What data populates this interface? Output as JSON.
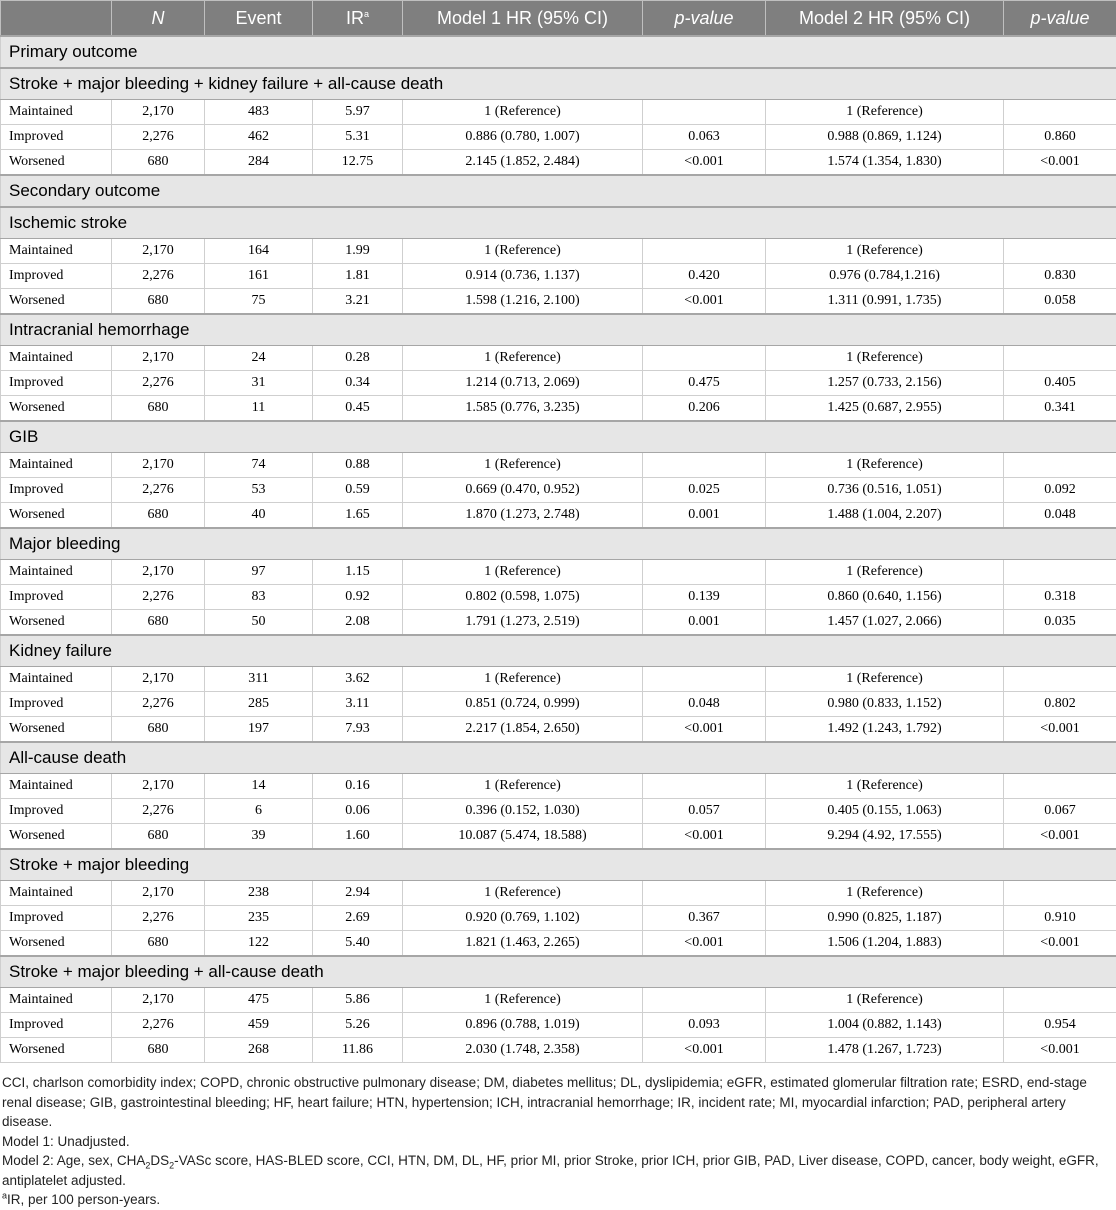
{
  "headers": {
    "n": "N",
    "event": "Event",
    "ir": "IR",
    "ir_sup": "a",
    "m1": "Model 1 HR (95% CI)",
    "p1": "p-value",
    "m2": "Model 2 HR (95% CI)",
    "p2": "p-value"
  },
  "groups": [
    {
      "title": "Primary outcome",
      "outcomes": [
        {
          "title": "Stroke + major bleeding + kidney failure + all-cause death",
          "rows": [
            {
              "label": "Maintained",
              "n": "2,170",
              "event": "483",
              "ir": "5.97",
              "m1": "1 (Reference)",
              "p1": "",
              "m2": "1 (Reference)",
              "p2": ""
            },
            {
              "label": "Improved",
              "n": "2,276",
              "event": "462",
              "ir": "5.31",
              "m1": "0.886 (0.780, 1.007)",
              "p1": "0.063",
              "m2": "0.988 (0.869, 1.124)",
              "p2": "0.860"
            },
            {
              "label": "Worsened",
              "n": "680",
              "event": "284",
              "ir": "12.75",
              "m1": "2.145 (1.852, 2.484)",
              "p1": "<0.001",
              "m2": "1.574 (1.354, 1.830)",
              "p2": "<0.001"
            }
          ]
        }
      ]
    },
    {
      "title": "Secondary outcome",
      "outcomes": [
        {
          "title": "Ischemic stroke",
          "rows": [
            {
              "label": "Maintained",
              "n": "2,170",
              "event": "164",
              "ir": "1.99",
              "m1": "1 (Reference)",
              "p1": "",
              "m2": "1 (Reference)",
              "p2": ""
            },
            {
              "label": "Improved",
              "n": "2,276",
              "event": "161",
              "ir": "1.81",
              "m1": "0.914 (0.736, 1.137)",
              "p1": "0.420",
              "m2": "0.976 (0.784,1.216)",
              "p2": "0.830"
            },
            {
              "label": "Worsened",
              "n": "680",
              "event": "75",
              "ir": "3.21",
              "m1": "1.598 (1.216, 2.100)",
              "p1": "<0.001",
              "m2": "1.311 (0.991, 1.735)",
              "p2": "0.058"
            }
          ]
        },
        {
          "title": "Intracranial hemorrhage",
          "rows": [
            {
              "label": "Maintained",
              "n": "2,170",
              "event": "24",
              "ir": "0.28",
              "m1": "1 (Reference)",
              "p1": "",
              "m2": "1 (Reference)",
              "p2": ""
            },
            {
              "label": "Improved",
              "n": "2,276",
              "event": "31",
              "ir": "0.34",
              "m1": "1.214 (0.713, 2.069)",
              "p1": "0.475",
              "m2": "1.257 (0.733, 2.156)",
              "p2": "0.405"
            },
            {
              "label": "Worsened",
              "n": "680",
              "event": "11",
              "ir": "0.45",
              "m1": "1.585 (0.776, 3.235)",
              "p1": "0.206",
              "m2": "1.425 (0.687, 2.955)",
              "p2": "0.341"
            }
          ]
        },
        {
          "title": "GIB",
          "rows": [
            {
              "label": "Maintained",
              "n": "2,170",
              "event": "74",
              "ir": "0.88",
              "m1": "1 (Reference)",
              "p1": "",
              "m2": "1 (Reference)",
              "p2": ""
            },
            {
              "label": "Improved",
              "n": "2,276",
              "event": "53",
              "ir": "0.59",
              "m1": "0.669 (0.470, 0.952)",
              "p1": "0.025",
              "m2": "0.736 (0.516, 1.051)",
              "p2": "0.092"
            },
            {
              "label": "Worsened",
              "n": "680",
              "event": "40",
              "ir": "1.65",
              "m1": "1.870 (1.273, 2.748)",
              "p1": "0.001",
              "m2": "1.488 (1.004, 2.207)",
              "p2": "0.048"
            }
          ]
        },
        {
          "title": "Major bleeding",
          "rows": [
            {
              "label": "Maintained",
              "n": "2,170",
              "event": "97",
              "ir": "1.15",
              "m1": "1 (Reference)",
              "p1": "",
              "m2": "1 (Reference)",
              "p2": ""
            },
            {
              "label": "Improved",
              "n": "2,276",
              "event": "83",
              "ir": "0.92",
              "m1": "0.802 (0.598, 1.075)",
              "p1": "0.139",
              "m2": "0.860 (0.640, 1.156)",
              "p2": "0.318"
            },
            {
              "label": "Worsened",
              "n": "680",
              "event": "50",
              "ir": "2.08",
              "m1": "1.791 (1.273, 2.519)",
              "p1": "0.001",
              "m2": "1.457 (1.027, 2.066)",
              "p2": "0.035"
            }
          ]
        },
        {
          "title": "Kidney failure",
          "rows": [
            {
              "label": "Maintained",
              "n": "2,170",
              "event": "311",
              "ir": "3.62",
              "m1": "1 (Reference)",
              "p1": "",
              "m2": "1 (Reference)",
              "p2": ""
            },
            {
              "label": "Improved",
              "n": "2,276",
              "event": "285",
              "ir": "3.11",
              "m1": "0.851 (0.724, 0.999)",
              "p1": "0.048",
              "m2": "0.980 (0.833, 1.152)",
              "p2": "0.802"
            },
            {
              "label": "Worsened",
              "n": "680",
              "event": "197",
              "ir": "7.93",
              "m1": "2.217 (1.854, 2.650)",
              "p1": "<0.001",
              "m2": "1.492 (1.243, 1.792)",
              "p2": "<0.001"
            }
          ]
        },
        {
          "title": "All-cause death",
          "rows": [
            {
              "label": "Maintained",
              "n": "2,170",
              "event": "14",
              "ir": "0.16",
              "m1": "1 (Reference)",
              "p1": "",
              "m2": "1 (Reference)",
              "p2": ""
            },
            {
              "label": "Improved",
              "n": "2,276",
              "event": "6",
              "ir": "0.06",
              "m1": "0.396 (0.152, 1.030)",
              "p1": "0.057",
              "m2": "0.405 (0.155, 1.063)",
              "p2": "0.067"
            },
            {
              "label": "Worsened",
              "n": "680",
              "event": "39",
              "ir": "1.60",
              "m1": "10.087 (5.474, 18.588)",
              "p1": "<0.001",
              "m2": "9.294 (4.92, 17.555)",
              "p2": "<0.001"
            }
          ]
        },
        {
          "title": "Stroke + major bleeding",
          "rows": [
            {
              "label": "Maintained",
              "n": "2,170",
              "event": "238",
              "ir": "2.94",
              "m1": "1 (Reference)",
              "p1": "",
              "m2": "1 (Reference)",
              "p2": ""
            },
            {
              "label": "Improved",
              "n": "2,276",
              "event": "235",
              "ir": "2.69",
              "m1": "0.920 (0.769, 1.102)",
              "p1": "0.367",
              "m2": "0.990 (0.825, 1.187)",
              "p2": "0.910"
            },
            {
              "label": "Worsened",
              "n": "680",
              "event": "122",
              "ir": "5.40",
              "m1": "1.821 (1.463, 2.265)",
              "p1": "<0.001",
              "m2": "1.506 (1.204, 1.883)",
              "p2": "<0.001"
            }
          ]
        },
        {
          "title": "Stroke + major bleeding + all-cause death",
          "rows": [
            {
              "label": "Maintained",
              "n": "2,170",
              "event": "475",
              "ir": "5.86",
              "m1": "1 (Reference)",
              "p1": "",
              "m2": "1 (Reference)",
              "p2": ""
            },
            {
              "label": "Improved",
              "n": "2,276",
              "event": "459",
              "ir": "5.26",
              "m1": "0.896 (0.788, 1.019)",
              "p1": "0.093",
              "m2": "1.004 (0.882, 1.143)",
              "p2": "0.954"
            },
            {
              "label": "Worsened",
              "n": "680",
              "event": "268",
              "ir": "11.86",
              "m1": "2.030 (1.748, 2.358)",
              "p1": "<0.001",
              "m2": "1.478 (1.267, 1.723)",
              "p2": "<0.001"
            }
          ]
        }
      ]
    }
  ],
  "footnotes": {
    "abbrev": "CCI, charlson comorbidity index; COPD, chronic obstructive pulmonary disease; DM, diabetes mellitus; DL, dyslipidemia; eGFR, estimated glomerular filtration rate; ESRD, end-stage renal disease; GIB, gastrointestinal bleeding; HF, heart failure; HTN, hypertension; ICH, intracranial hemorrhage; IR, incident rate; MI, myocardial infarction; PAD, peripheral artery disease.",
    "model1": "Model 1: Unadjusted.",
    "model2_pre": "Model 2: Age, sex, CHA",
    "model2_sub1": "2",
    "model2_mid": "DS",
    "model2_sub2": "2",
    "model2_post": "-VASc score, HAS-BLED score, CCI, HTN, DM, DL, HF, prior MI, prior Stroke, prior ICH, prior GIB, PAD, Liver disease, COPD, cancer, body weight, eGFR, antiplatelet adjusted.",
    "ir_sup": "a",
    "ir_note": "IR, per 100 person-years."
  }
}
